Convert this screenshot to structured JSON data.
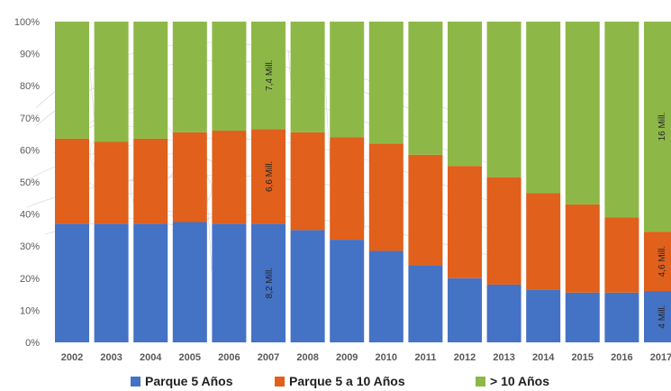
{
  "chart_data": {
    "type": "bar",
    "stacked": true,
    "percent": true,
    "categories": [
      "2002",
      "2003",
      "2004",
      "2005",
      "2006",
      "2007",
      "2008",
      "2009",
      "2010",
      "2011",
      "2012",
      "2013",
      "2014",
      "2015",
      "2016",
      "2017"
    ],
    "series": [
      {
        "name": "Parque 5 Años",
        "color": "#4472C4",
        "values": [
          37,
          37,
          37,
          37.5,
          37,
          37,
          35,
          32,
          28.5,
          24,
          20,
          18,
          16.5,
          15.5,
          15.5,
          16
        ]
      },
      {
        "name": "Parque  5  a 10 Años",
        "color": "#E0601C",
        "values": [
          26.5,
          25.5,
          26.5,
          28,
          29,
          29.5,
          30.5,
          32,
          33.5,
          34.5,
          35,
          33.5,
          30,
          27.5,
          23.5,
          18.5
        ]
      },
      {
        "name": "> 10 Años",
        "color": "#8DB847",
        "values": [
          36.5,
          37.5,
          36.5,
          34.5,
          34,
          33.5,
          34.5,
          36,
          38,
          41.5,
          45,
          48.5,
          53.5,
          57,
          61,
          65.5
        ]
      }
    ],
    "ylim": [
      0,
      100
    ],
    "y_ticks": [
      "0%",
      "10%",
      "20%",
      "30%",
      "40%",
      "50%",
      "60%",
      "70%",
      "80%",
      "90%",
      "100%"
    ],
    "grid": false,
    "legend_position": "bottom",
    "annotations": [
      {
        "category": "2007",
        "series": 0,
        "text": "8,2 Mill."
      },
      {
        "category": "2007",
        "series": 1,
        "text": "6,6 Mill."
      },
      {
        "category": "2007",
        "series": 2,
        "text": "7,4 Mill."
      },
      {
        "category": "2017",
        "series": 0,
        "text": "4 Mill."
      },
      {
        "category": "2017",
        "series": 1,
        "text": "4,6 Mill."
      },
      {
        "category": "2017",
        "series": 2,
        "text": "16 Mill."
      }
    ]
  }
}
